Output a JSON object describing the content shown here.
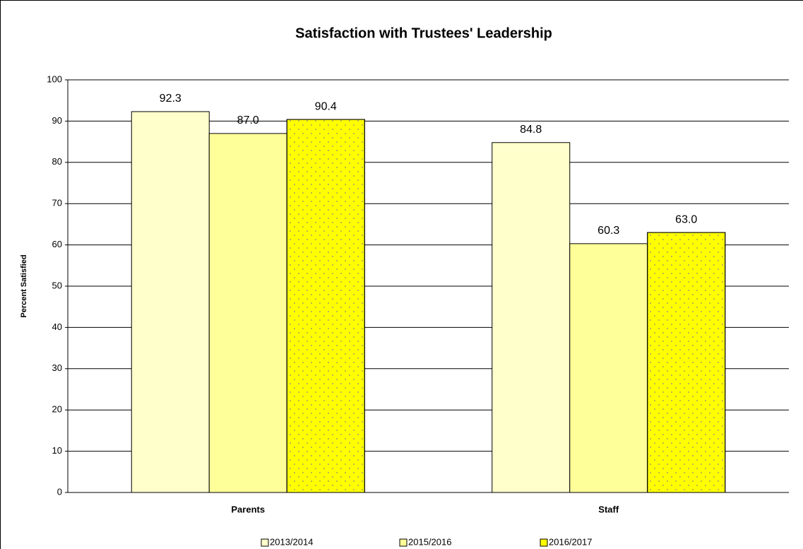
{
  "chart_data": {
    "type": "bar",
    "title": "Satisfaction with Trustees' Leadership",
    "y_label": "Percent Satisfied",
    "categories": [
      "Parents",
      "Staff"
    ],
    "series": [
      {
        "name": "2013/2014",
        "color": "#ffffcc",
        "values": [
          92.3,
          84.8
        ],
        "value_labels": [
          "92.3",
          "84.8"
        ]
      },
      {
        "name": "2015/2016",
        "color": "#ffff99",
        "values": [
          87,
          60.3
        ],
        "value_labels": [
          "87.0",
          "60.3"
        ]
      },
      {
        "name": "2016/2017",
        "color": "#ffff00",
        "pattern": "dots",
        "values": [
          90.4,
          63
        ],
        "value_labels": [
          "90.4",
          "63.0"
        ]
      }
    ],
    "ylim": [
      0,
      100
    ],
    "yticks": [
      0,
      10,
      20,
      30,
      40,
      50,
      60,
      70,
      80,
      90,
      100
    ],
    "grid": true,
    "legend": "bottom"
  }
}
